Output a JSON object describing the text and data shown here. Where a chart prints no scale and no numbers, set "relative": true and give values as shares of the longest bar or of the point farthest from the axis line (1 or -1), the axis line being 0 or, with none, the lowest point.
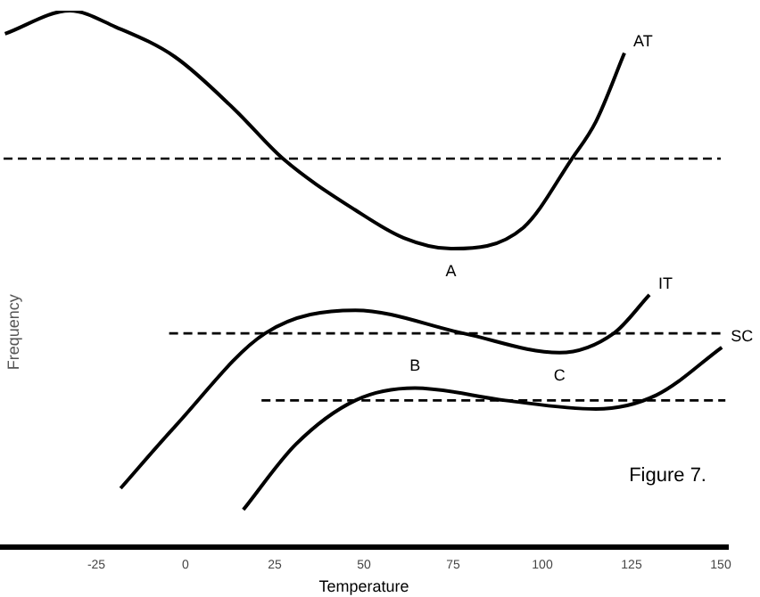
{
  "chart_data": {
    "type": "line",
    "relative": true,
    "xlabel": "Temperature",
    "ylabel": "Frequency",
    "xlim": [
      -52,
      152
    ],
    "xticks": [
      -25,
      0,
      25,
      50,
      75,
      100,
      125,
      150
    ],
    "grid": false,
    "legend": false,
    "marker": "none",
    "series": [
      {
        "name": "AT",
        "color": "#000000",
        "x": [
          -50.6,
          -32.4,
          -19.7,
          -3,
          13.7,
          27.3,
          47.6,
          61.2,
          74.4,
          94.6,
          108.3,
          115,
          123
        ],
        "values": [
          0.957,
          1.0,
          0.97,
          0.914,
          0.816,
          0.724,
          0.628,
          0.576,
          0.556,
          0.595,
          0.724,
          0.793,
          0.921
        ]
      },
      {
        "name": "IT",
        "color": "#000000",
        "x": [
          -18.2,
          -3,
          22.3,
          47.6,
          77.9,
          104.8,
          120,
          130
        ],
        "values": [
          0.109,
          0.224,
          0.398,
          0.441,
          0.398,
          0.362,
          0.398,
          0.47
        ]
      },
      {
        "name": "SC",
        "color": "#000000",
        "x": [
          16.2,
          30.9,
          47.6,
          64.3,
          89.6,
          115,
          132,
          150.3
        ],
        "values": [
          0.069,
          0.191,
          0.273,
          0.296,
          0.273,
          0.257,
          0.283,
          0.372
        ]
      },
      {
        "color": "#000000",
        "line_style": "dashed",
        "x": [
          -51,
          150
        ],
        "values": [
          0.724,
          0.724
        ]
      },
      {
        "color": "#000000",
        "line_style": "dashed",
        "x": [
          -4.6,
          150.3
        ],
        "values": [
          0.398,
          0.398
        ]
      },
      {
        "color": "#000000",
        "line_style": "dashed",
        "x": [
          21.3,
          151.3
        ],
        "values": [
          0.273,
          0.273
        ]
      }
    ],
    "annotations": [
      {
        "text": "A",
        "x": 74.4,
        "y": 0.556
      },
      {
        "text": "B",
        "x": 64.3,
        "y": 0.296
      },
      {
        "text": "C",
        "x": 104.8,
        "y": 0.362
      },
      "Figure 7."
    ]
  }
}
